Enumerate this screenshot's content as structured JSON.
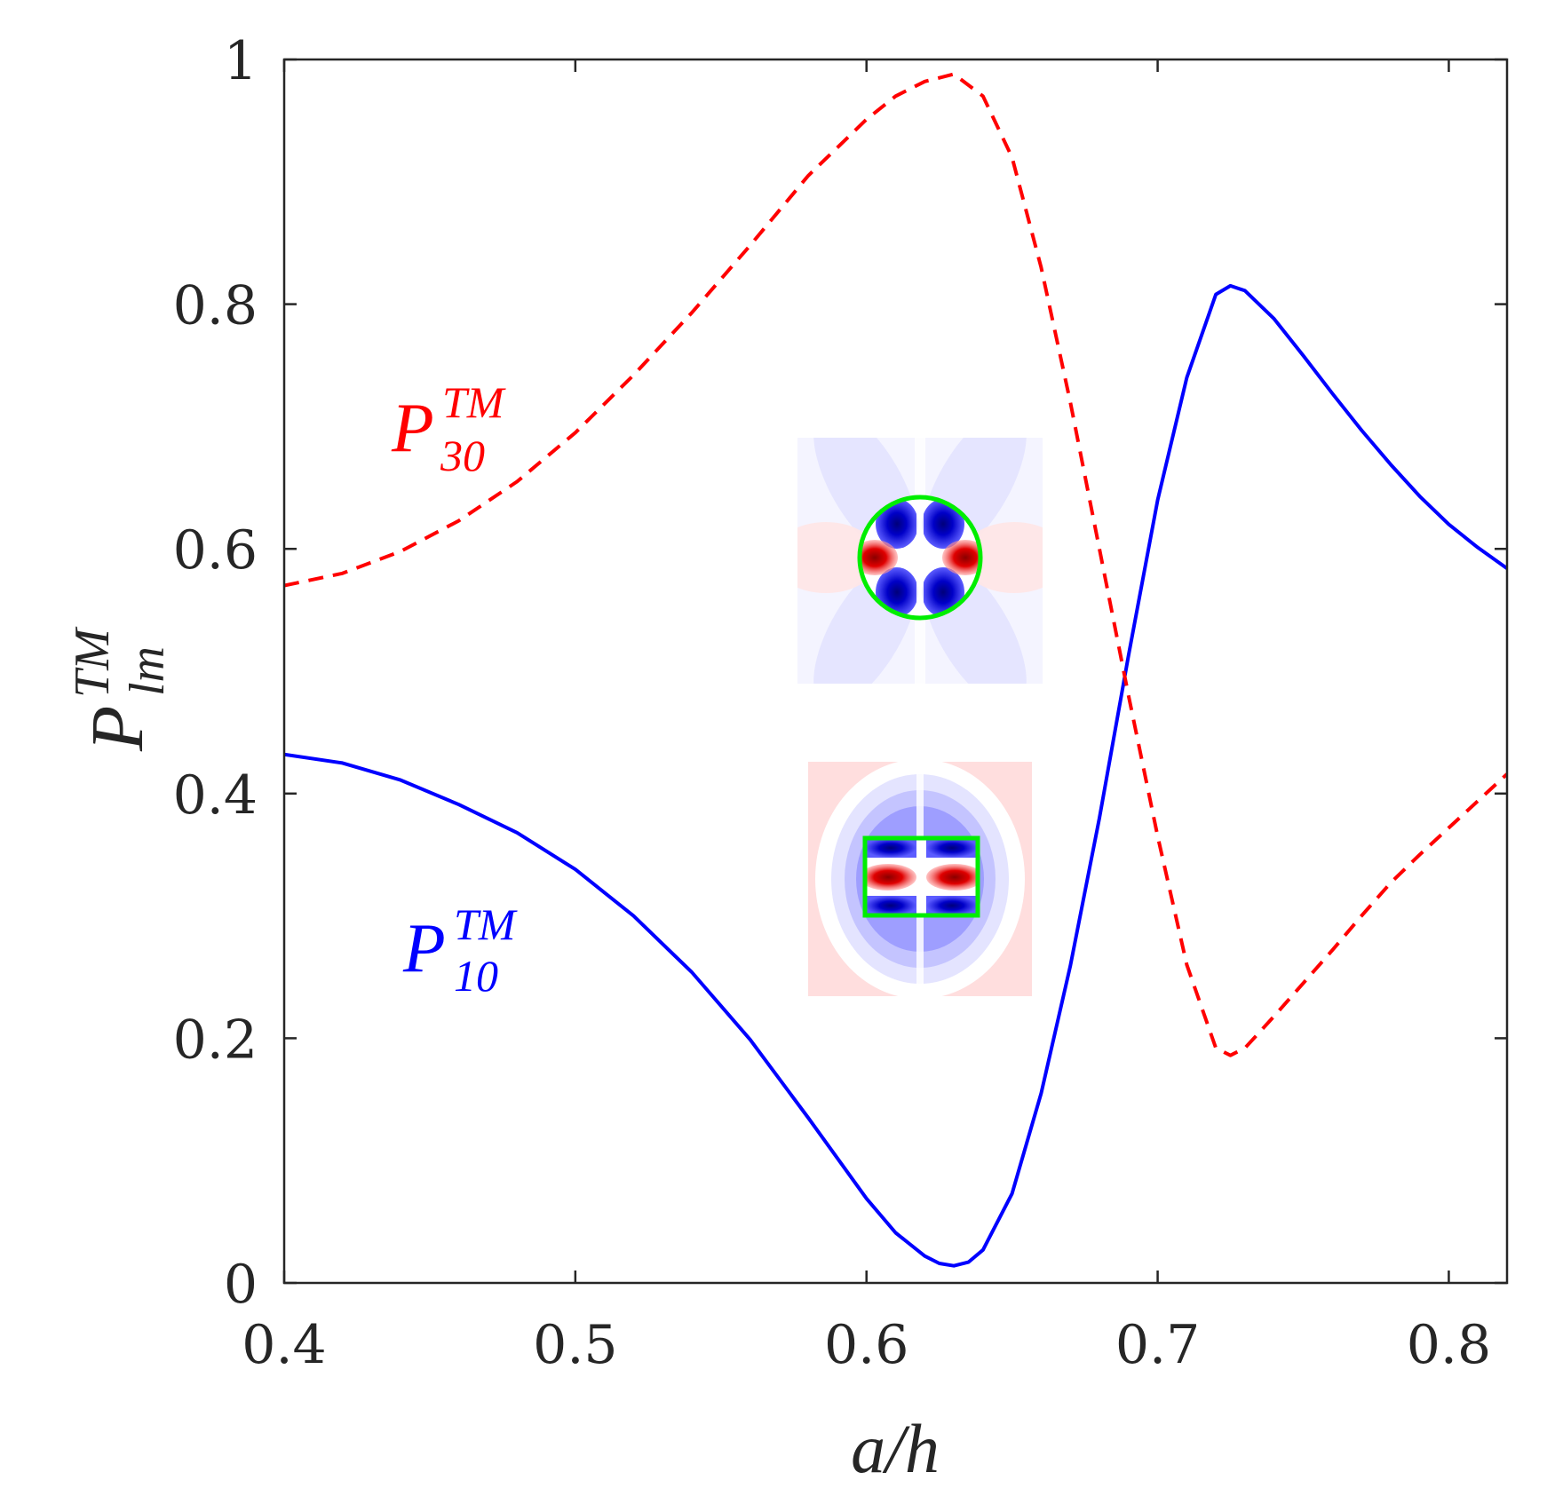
{
  "chart_data": {
    "type": "line",
    "title": "",
    "xlabel": "a/h",
    "ylabel": {
      "base": "P",
      "sub": "lm",
      "sup": "TM"
    },
    "xlim": [
      0.4,
      0.82
    ],
    "ylim": [
      0,
      1
    ],
    "xticks": [
      0.4,
      0.5,
      0.6,
      0.7,
      0.8
    ],
    "yticks": [
      0,
      0.2,
      0.4,
      0.6,
      0.8,
      1
    ],
    "xtick_labels": [
      "0.4",
      "0.5",
      "0.6",
      "0.7",
      "0.8"
    ],
    "ytick_labels": [
      "0",
      "0.2",
      "0.4",
      "0.6",
      "0.8",
      "1"
    ],
    "grid": false,
    "series": [
      {
        "name": "P_10^TM",
        "color": "#0000ff",
        "style": "solid",
        "x": [
          0.4,
          0.42,
          0.44,
          0.46,
          0.48,
          0.5,
          0.52,
          0.54,
          0.56,
          0.58,
          0.6,
          0.61,
          0.62,
          0.625,
          0.63,
          0.635,
          0.64,
          0.65,
          0.66,
          0.67,
          0.68,
          0.69,
          0.7,
          0.71,
          0.72,
          0.725,
          0.73,
          0.74,
          0.75,
          0.76,
          0.77,
          0.78,
          0.79,
          0.8,
          0.81,
          0.82
        ],
        "values": [
          0.432,
          0.425,
          0.411,
          0.391,
          0.368,
          0.338,
          0.3,
          0.254,
          0.199,
          0.135,
          0.069,
          0.041,
          0.022,
          0.016,
          0.014,
          0.017,
          0.027,
          0.073,
          0.155,
          0.259,
          0.38,
          0.513,
          0.64,
          0.74,
          0.808,
          0.815,
          0.811,
          0.788,
          0.758,
          0.727,
          0.697,
          0.669,
          0.643,
          0.62,
          0.601,
          0.584
        ]
      },
      {
        "name": "P_30^TM",
        "color": "#ff0000",
        "style": "dashed",
        "x": [
          0.4,
          0.42,
          0.44,
          0.46,
          0.48,
          0.5,
          0.52,
          0.54,
          0.56,
          0.58,
          0.6,
          0.61,
          0.62,
          0.63,
          0.64,
          0.65,
          0.66,
          0.67,
          0.68,
          0.69,
          0.7,
          0.71,
          0.72,
          0.725,
          0.73,
          0.74,
          0.75,
          0.76,
          0.77,
          0.78,
          0.79,
          0.8,
          0.81,
          0.82
        ],
        "values": [
          0.57,
          0.58,
          0.598,
          0.623,
          0.655,
          0.695,
          0.742,
          0.793,
          0.848,
          0.905,
          0.951,
          0.97,
          0.982,
          0.988,
          0.97,
          0.92,
          0.83,
          0.72,
          0.6,
          0.48,
          0.365,
          0.26,
          0.192,
          0.186,
          0.192,
          0.218,
          0.245,
          0.272,
          0.3,
          0.327,
          0.35,
          0.372,
          0.394,
          0.416
        ]
      }
    ],
    "annotations": [
      {
        "base": "P",
        "sub": "30",
        "sup": "TM",
        "color": "#ff0000"
      },
      {
        "base": "P",
        "sub": "10",
        "sup": "TM",
        "color": "#0000ff"
      }
    ],
    "insets": [
      {
        "shape": "circle",
        "outline_color": "#00ee00",
        "field": "dipole-cross"
      },
      {
        "shape": "rectangle",
        "outline_color": "#00ee00",
        "field": "dipole-bar"
      }
    ]
  }
}
